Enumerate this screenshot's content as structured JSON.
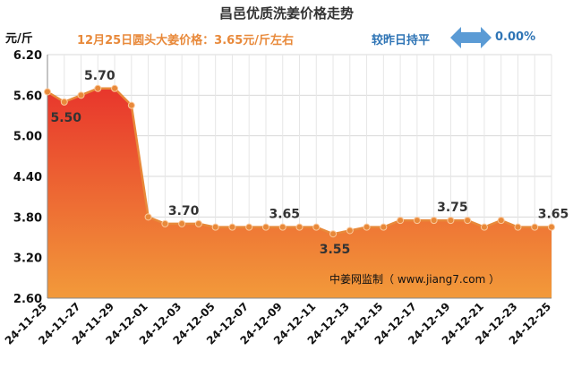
{
  "header": {
    "title": "昌邑优质洗姜价格走势",
    "unit": "元/斤",
    "subtitle": "12月25日圆头大姜价格：3.65元/斤左右",
    "compare_text": "较昨日持平",
    "change": "0.00%"
  },
  "watermark": "中姜网监制（ www.jiang7.com ）",
  "colors": {
    "line": "#e8893a",
    "fill_top": "#e8362c",
    "fill_bottom": "#f29a3a",
    "subtitle": "#e8893a",
    "accent_blue": "#2e74b5",
    "arrow": "#5b9bd5"
  },
  "chart_data": {
    "type": "area",
    "title": "昌邑优质洗姜价格走势",
    "ylabel": "元/斤",
    "ylim": [
      2.6,
      6.2
    ],
    "yticks": [
      "2.60",
      "3.20",
      "3.80",
      "4.40",
      "5.00",
      "5.60",
      "6.20"
    ],
    "grid": true,
    "x_ticklabels": [
      "24-11-25",
      "24-11-27",
      "24-11-29",
      "24-12-01",
      "24-12-03",
      "24-12-05",
      "24-12-07",
      "24-12-09",
      "24-12-11",
      "24-12-13",
      "24-12-15",
      "24-12-17",
      "24-12-19",
      "24-12-21",
      "24-12-23",
      "24-12-25"
    ],
    "x": [
      "24-11-25",
      "24-11-26",
      "24-11-27",
      "24-11-28",
      "24-11-29",
      "24-11-30",
      "24-12-01",
      "24-12-02",
      "24-12-03",
      "24-12-04",
      "24-12-05",
      "24-12-06",
      "24-12-07",
      "24-12-08",
      "24-12-09",
      "24-12-10",
      "24-12-11",
      "24-12-12",
      "24-12-13",
      "24-12-14",
      "24-12-15",
      "24-12-16",
      "24-12-17",
      "24-12-18",
      "24-12-19",
      "24-12-20",
      "24-12-21",
      "24-12-22",
      "24-12-23",
      "24-12-24",
      "24-12-25"
    ],
    "values": [
      5.65,
      5.5,
      5.6,
      5.7,
      5.7,
      5.45,
      3.8,
      3.7,
      3.7,
      3.7,
      3.65,
      3.65,
      3.65,
      3.65,
      3.65,
      3.65,
      3.65,
      3.55,
      3.6,
      3.65,
      3.65,
      3.75,
      3.75,
      3.75,
      3.75,
      3.75,
      3.65,
      3.75,
      3.65,
      3.65,
      3.65
    ],
    "annotations": [
      {
        "index": 1,
        "label": "5.50",
        "pos": "below"
      },
      {
        "index": 3,
        "label": "5.70",
        "pos": "above"
      },
      {
        "index": 8,
        "label": "3.70",
        "pos": "above"
      },
      {
        "index": 14,
        "label": "3.65",
        "pos": "above"
      },
      {
        "index": 17,
        "label": "3.55",
        "pos": "below"
      },
      {
        "index": 24,
        "label": "3.75",
        "pos": "above"
      },
      {
        "index": 30,
        "label": "3.65",
        "pos": "above"
      }
    ]
  }
}
